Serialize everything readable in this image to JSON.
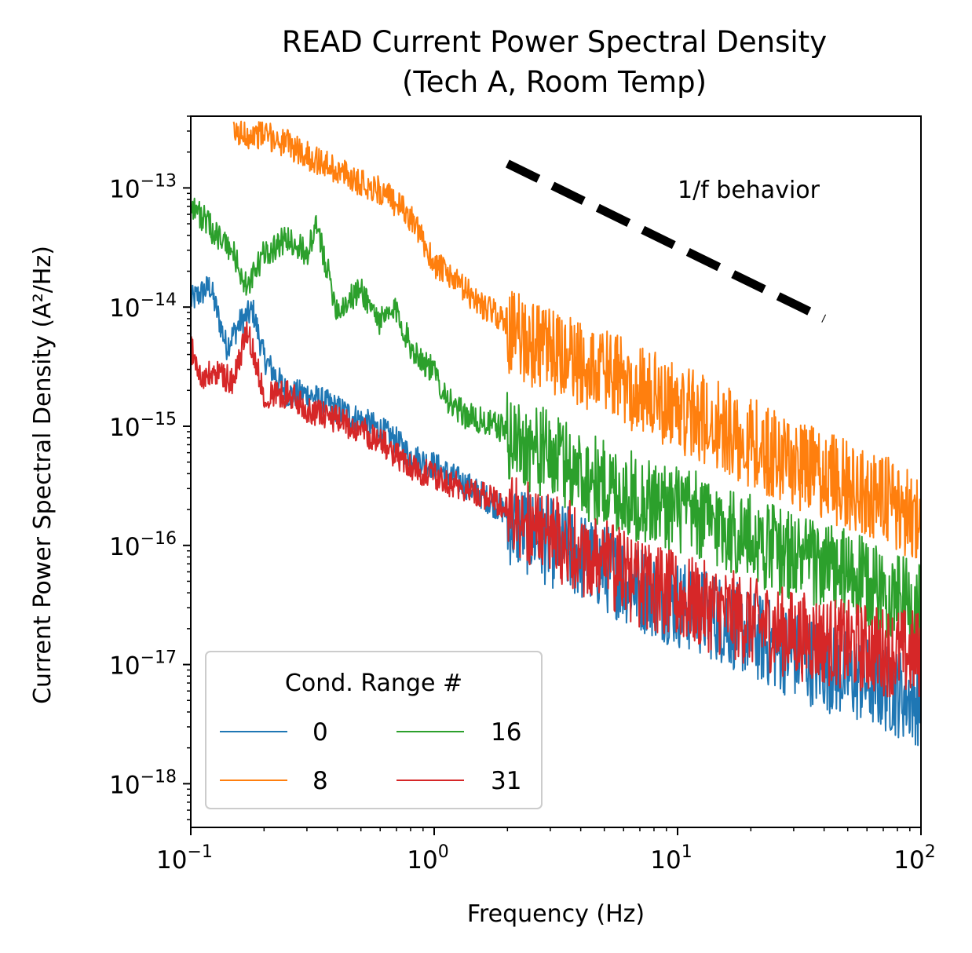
{
  "chart_data": {
    "type": "line",
    "title": "READ Current Power Spectral Density",
    "subtitle": "(Tech A, Room Temp)",
    "xlabel": "Frequency (Hz)",
    "ylabel": "Current Power Spectral Density (A²/Hz)",
    "x_scale": "log",
    "y_scale": "log",
    "xlim": [
      0.1,
      100
    ],
    "ylim": [
      4.3e-19,
      4e-13
    ],
    "x_ticks": [
      {
        "value": 0.1,
        "base": "10",
        "exp": "−1"
      },
      {
        "value": 1,
        "base": "10",
        "exp": "0"
      },
      {
        "value": 10,
        "base": "10",
        "exp": "1"
      },
      {
        "value": 100,
        "base": "10",
        "exp": "2"
      }
    ],
    "y_ticks": [
      {
        "value": 1e-18,
        "base": "10",
        "exp": "−18"
      },
      {
        "value": 1e-17,
        "base": "10",
        "exp": "−17"
      },
      {
        "value": 1e-16,
        "base": "10",
        "exp": "−16"
      },
      {
        "value": 1e-15,
        "base": "10",
        "exp": "−15"
      },
      {
        "value": 1e-14,
        "base": "10",
        "exp": "−14"
      },
      {
        "value": 1e-13,
        "base": "10",
        "exp": "−13"
      }
    ],
    "grid": false,
    "legend": {
      "title": "Cond. Range #",
      "position": "lower-left",
      "columns": 2
    },
    "annotation": {
      "text": "1/f behavior",
      "reference_line": {
        "x": [
          2,
          40
        ],
        "y": [
          1.6e-13,
          8e-15
        ],
        "style": "dashed",
        "color": "#000000"
      }
    },
    "series": [
      {
        "name": "0",
        "color": "#1f77b4",
        "x": [
          0.1,
          0.12,
          0.14,
          0.16,
          0.18,
          0.2,
          0.25,
          0.3,
          0.4,
          0.5,
          0.6,
          0.7,
          0.8,
          1,
          1.5,
          2,
          3,
          4,
          5,
          7,
          10,
          15,
          20,
          30,
          50,
          70,
          100
        ],
        "y": [
          1.2e-14,
          1.6e-14,
          5e-15,
          8e-15,
          1e-14,
          4e-15,
          2e-15,
          2e-15,
          1.5e-15,
          1.2e-15,
          1e-15,
          8e-16,
          6e-16,
          5e-16,
          3e-16,
          2e-16,
          1.3e-16,
          1e-16,
          8e-17,
          5.5e-17,
          4e-17,
          3e-17,
          2.2e-17,
          1.5e-17,
          1e-17,
          8e-18,
          6e-18
        ]
      },
      {
        "name": "8",
        "color": "#ff7f0e",
        "x": [
          0.15,
          0.2,
          0.25,
          0.3,
          0.4,
          0.5,
          0.6,
          0.7,
          0.8,
          1,
          1.5,
          2,
          3,
          4,
          5,
          7,
          10,
          15,
          20,
          30,
          50,
          70,
          100
        ],
        "y": [
          3e-13,
          3e-13,
          2.5e-13,
          2e-13,
          1.5e-13,
          1.2e-13,
          1e-13,
          8e-14,
          6e-14,
          2.5e-14,
          1.2e-14,
          8e-15,
          5e-15,
          4e-15,
          3.5e-15,
          2.5e-15,
          1.8e-15,
          1.2e-15,
          9e-16,
          6e-16,
          4e-16,
          3e-16,
          2e-16
        ]
      },
      {
        "name": "16",
        "color": "#2ca02c",
        "x": [
          0.1,
          0.12,
          0.15,
          0.17,
          0.2,
          0.25,
          0.3,
          0.33,
          0.4,
          0.5,
          0.6,
          0.7,
          0.8,
          1,
          1.2,
          1.5,
          2,
          3,
          4,
          5,
          7,
          10,
          15,
          20,
          30,
          50,
          70,
          100
        ],
        "y": [
          8e-14,
          5e-14,
          3e-14,
          1.5e-14,
          3e-14,
          4e-14,
          3e-14,
          5e-14,
          1e-14,
          1.5e-14,
          8e-15,
          1e-14,
          5e-15,
          3e-15,
          1.5e-15,
          1.2e-15,
          1e-15,
          7e-16,
          5e-16,
          4e-16,
          3e-16,
          2.5e-16,
          1.8e-16,
          1.4e-16,
          1e-16,
          7e-17,
          5e-17,
          3.5e-17
        ]
      },
      {
        "name": "31",
        "color": "#d62728",
        "x": [
          0.1,
          0.11,
          0.13,
          0.15,
          0.17,
          0.2,
          0.25,
          0.3,
          0.4,
          0.5,
          0.6,
          0.7,
          0.8,
          1,
          1.5,
          2,
          3,
          4,
          5,
          7,
          10,
          15,
          20,
          30,
          50,
          70,
          100
        ],
        "y": [
          5e-15,
          2.7e-15,
          3e-15,
          2.5e-15,
          7e-15,
          2e-15,
          2e-15,
          1.5e-15,
          1.2e-15,
          1e-15,
          8e-16,
          6e-16,
          5e-16,
          4e-16,
          3e-16,
          2.2e-16,
          1.5e-16,
          1.1e-16,
          9e-17,
          6e-17,
          4.5e-17,
          3.5e-17,
          2.8e-17,
          2.2e-17,
          1.8e-17,
          1.6e-17,
          1.5e-17
        ]
      }
    ]
  }
}
